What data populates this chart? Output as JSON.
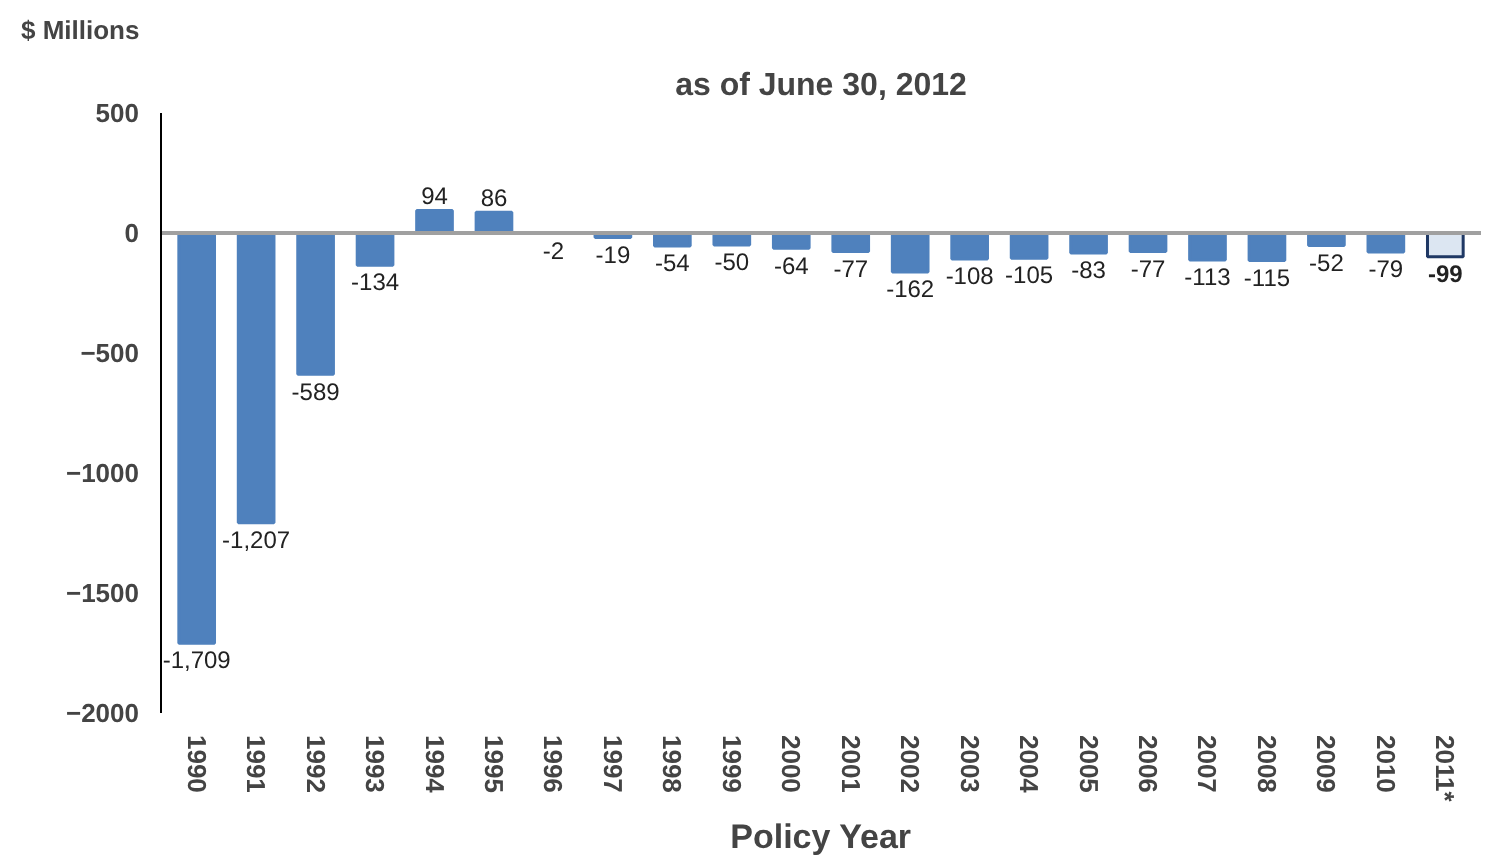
{
  "chart_data": {
    "type": "bar",
    "title": "as of June 30, 2012",
    "ylabel": "$ Millions",
    "xlabel": "Policy Year",
    "categories": [
      "1990",
      "1991",
      "1992",
      "1993",
      "1994",
      "1995",
      "1996",
      "1997",
      "1998",
      "1999",
      "2000",
      "2001",
      "2002",
      "2003",
      "2004",
      "2005",
      "2006",
      "2007",
      "2008",
      "2009",
      "2010",
      "2011*"
    ],
    "values": [
      -1709,
      -1207,
      -589,
      -134,
      94,
      86,
      -2,
      -19,
      -54,
      -50,
      -64,
      -77,
      -162,
      -108,
      -105,
      -83,
      -77,
      -113,
      -115,
      -52,
      -79,
      -99
    ],
    "value_labels": [
      "-1,709",
      "-1,207",
      "-589",
      "-134",
      "94",
      "86",
      "-2",
      "-19",
      "-54",
      "-50",
      "-64",
      "-77",
      "-162",
      "-108",
      "-105",
      "-83",
      "-77",
      "-113",
      "-115",
      "-52",
      "-79",
      "-99"
    ],
    "colors": [
      "#4f81bd",
      "#4f81bd",
      "#4f81bd",
      "#4f81bd",
      "#4f81bd",
      "#4f81bd",
      "#4f81bd",
      "#4f81bd",
      "#4f81bd",
      "#4f81bd",
      "#4f81bd",
      "#4f81bd",
      "#4f81bd",
      "#4f81bd",
      "#4f81bd",
      "#4f81bd",
      "#4f81bd",
      "#4f81bd",
      "#4f81bd",
      "#4f81bd",
      "#4f81bd",
      "#dce6f2"
    ],
    "ylim": [
      -2000,
      500
    ],
    "yticks": [
      -2000,
      -1500,
      -1000,
      -500,
      0,
      500
    ]
  }
}
